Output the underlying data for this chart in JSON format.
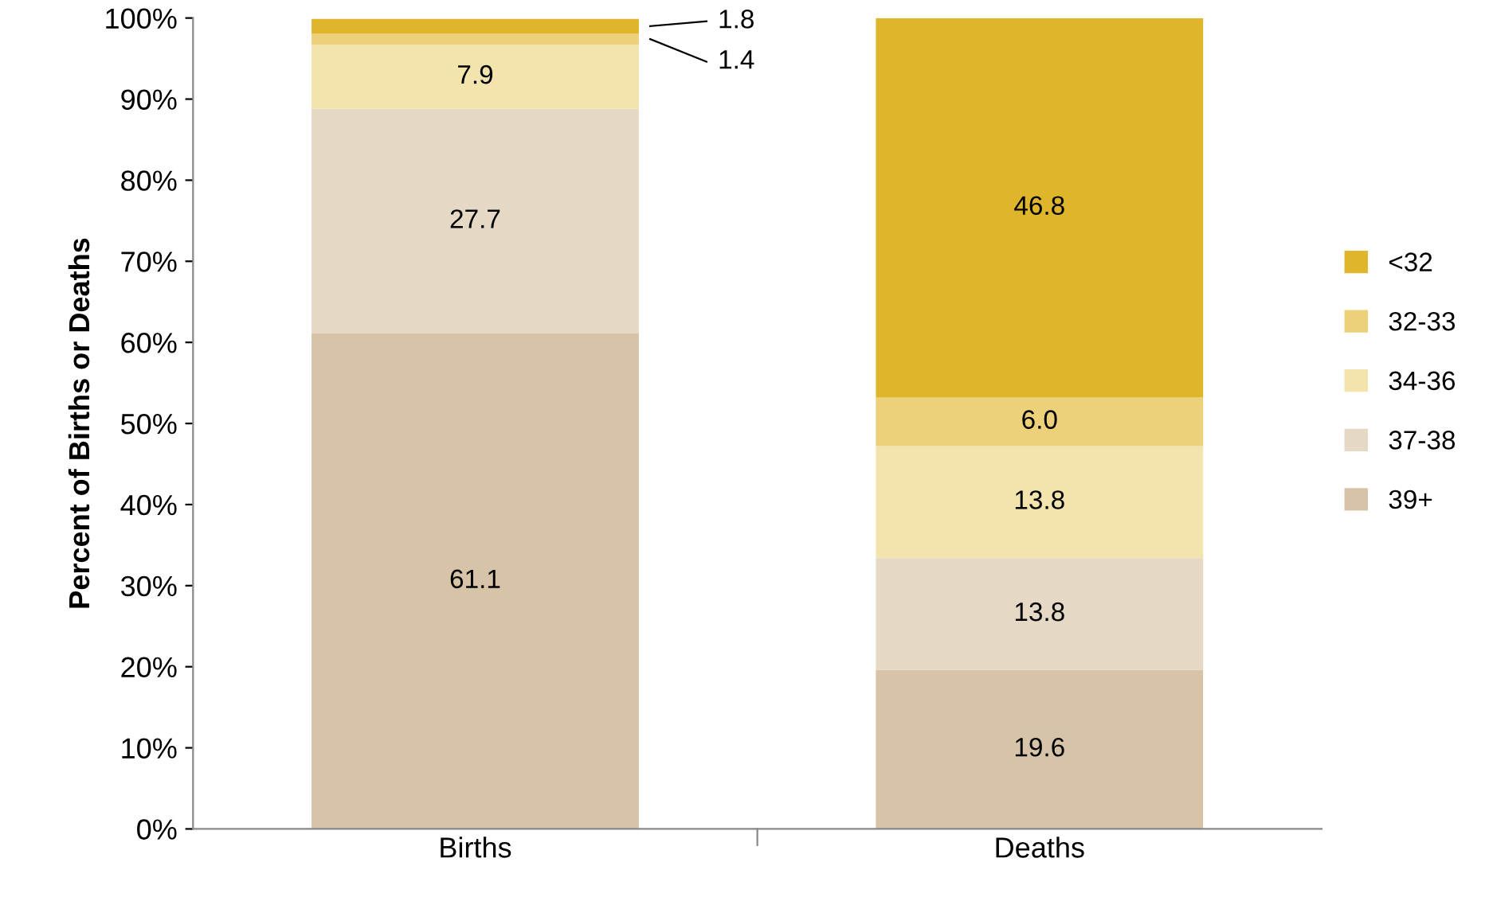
{
  "chart_data": {
    "type": "bar",
    "stacked": true,
    "ylabel": "Percent of Births or Deaths",
    "categories": [
      "Births",
      "Deaths"
    ],
    "series": [
      {
        "name": "39+",
        "color": "#d7c4a8",
        "values": [
          61.1,
          19.6
        ],
        "value_labels": [
          "61.1",
          "19.6"
        ]
      },
      {
        "name": "37-38",
        "color": "#e5d9c6",
        "values": [
          27.7,
          13.8
        ],
        "value_labels": [
          "27.7",
          "13.8"
        ]
      },
      {
        "name": "34-36",
        "color": "#f3e3ad",
        "values": [
          7.9,
          13.8
        ],
        "value_labels": [
          "7.9",
          "13.8"
        ]
      },
      {
        "name": "32-33",
        "color": "#ecd07a",
        "values": [
          1.4,
          6.0
        ],
        "value_labels": [
          "1.4",
          "6.0"
        ]
      },
      {
        "name": "<32",
        "color": "#dfb52c",
        "values": [
          1.8,
          46.8
        ],
        "value_labels": [
          "1.8",
          "46.8"
        ]
      }
    ],
    "ylim": [
      0,
      100
    ],
    "yticks": [
      {
        "value": 0,
        "label": "0%"
      },
      {
        "value": 10,
        "label": "10%"
      },
      {
        "value": 20,
        "label": "20%"
      },
      {
        "value": 30,
        "label": "30%"
      },
      {
        "value": 40,
        "label": "40%"
      },
      {
        "value": 50,
        "label": "50%"
      },
      {
        "value": 60,
        "label": "60%"
      },
      {
        "value": 70,
        "label": "70%"
      },
      {
        "value": 80,
        "label": "80%"
      },
      {
        "value": 90,
        "label": "90%"
      },
      {
        "value": 100,
        "label": "100%"
      }
    ],
    "grid": false,
    "legend": "right"
  }
}
